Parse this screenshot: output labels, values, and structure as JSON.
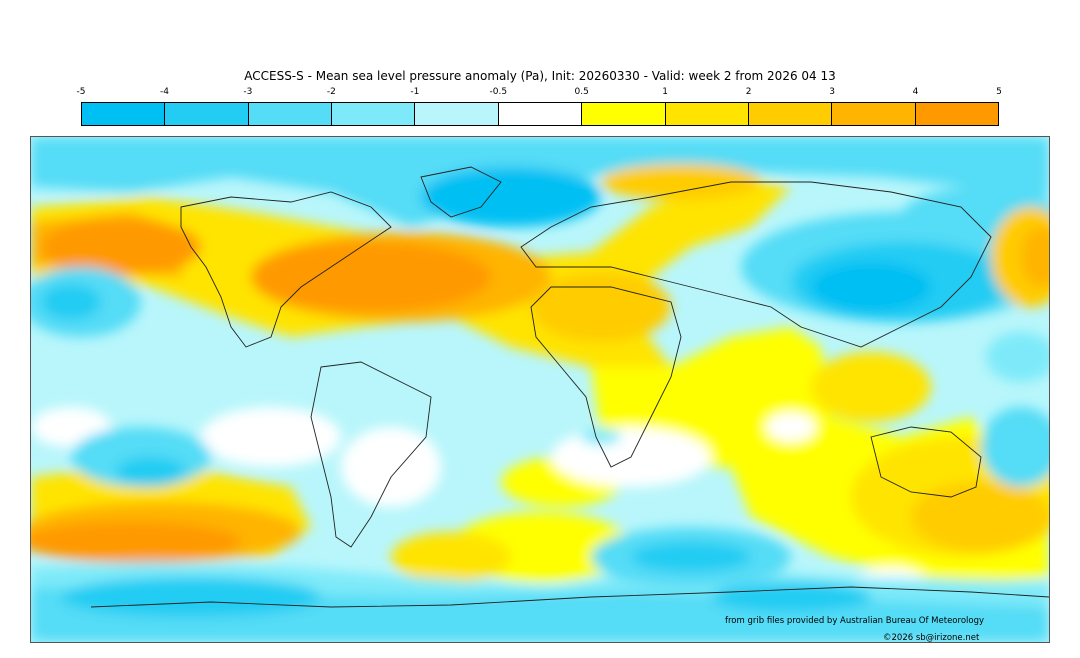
{
  "title": "ACCESS-S - Mean sea level pressure anomaly (Pa), Init: 20260330 - Valid: week 2 from 2026 04 13",
  "colorbar": {
    "ticks": [
      "-5",
      "-4",
      "-3",
      "-2",
      "-1",
      "-0.5",
      "0.5",
      "1",
      "2",
      "3",
      "4",
      "5"
    ],
    "colors": [
      "#00bff3",
      "#22ccf3",
      "#55dcf6",
      "#7eeaf9",
      "#b8f6fb",
      "#ffffff",
      "#ffff00",
      "#ffe400",
      "#ffcc00",
      "#ffb400",
      "#ff9900"
    ]
  },
  "credits": {
    "source": "from grib files provided by Australian Bureau Of Meteorology",
    "copyright": "©2026 sb@irizone.net"
  }
}
